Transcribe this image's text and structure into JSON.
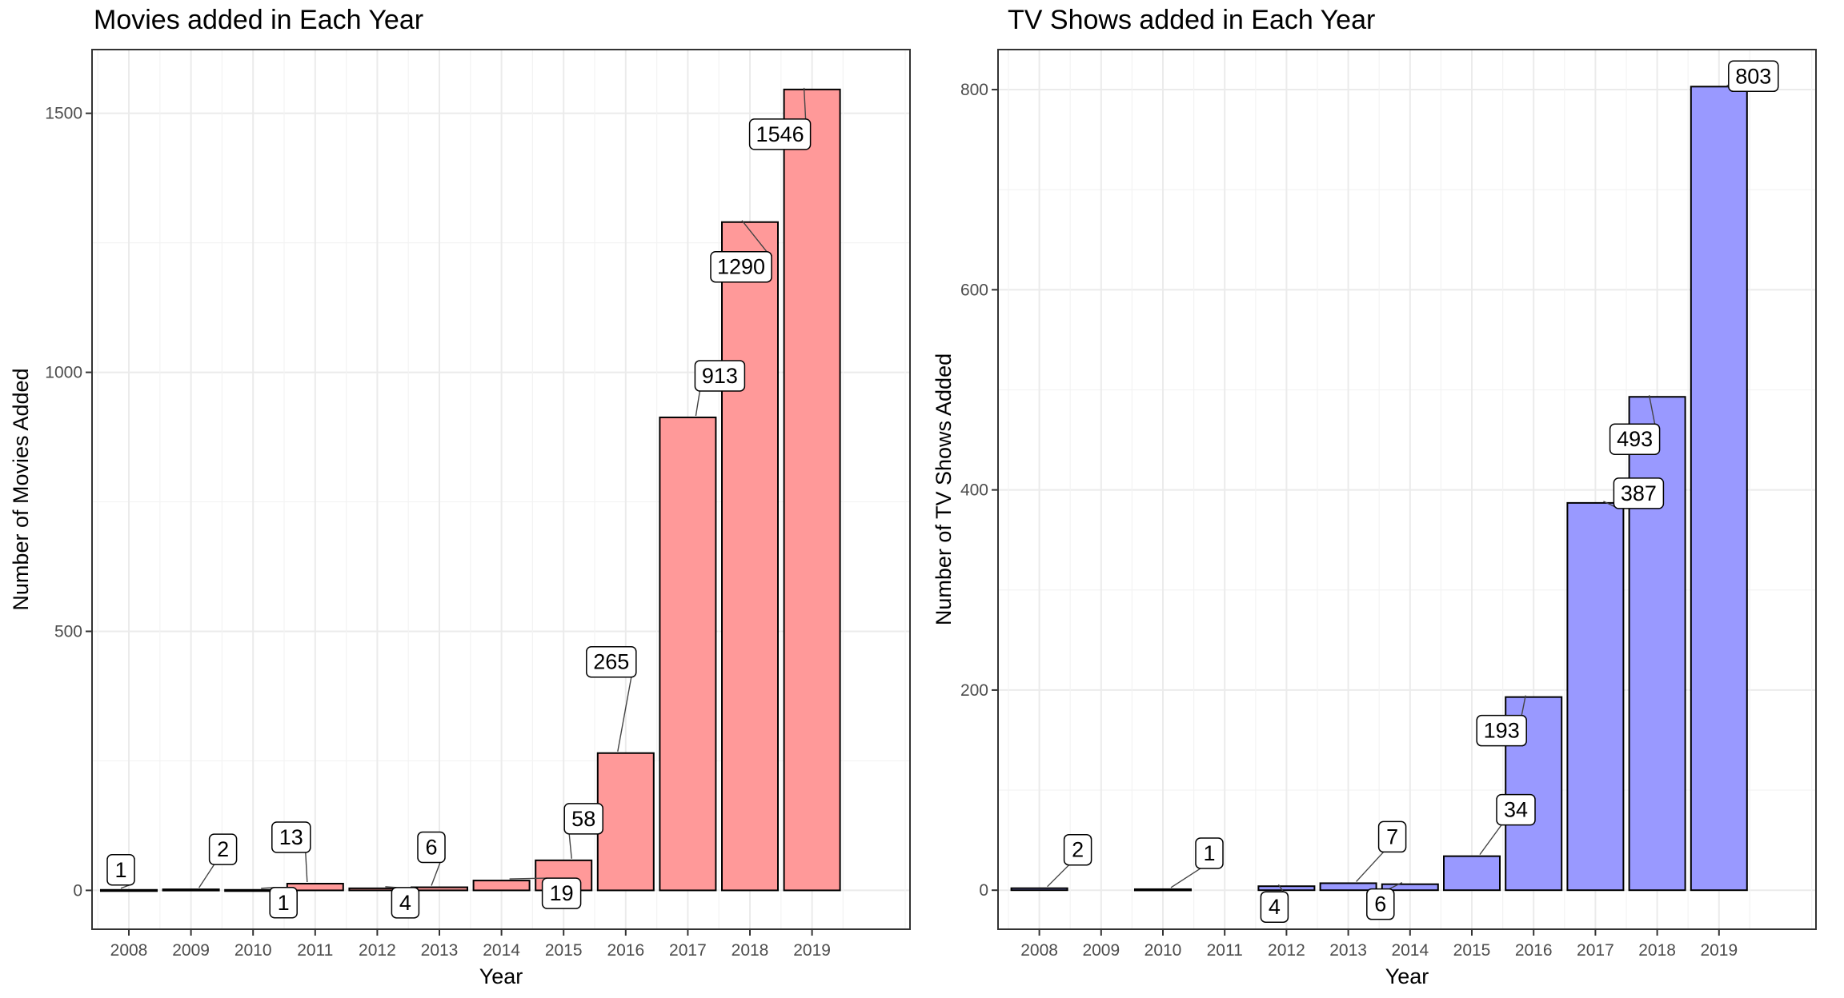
{
  "chart_data": [
    {
      "type": "bar",
      "title": "Movies added in Each Year",
      "xlabel": "Year",
      "ylabel": "Number of Movies Added",
      "categories": [
        "2008",
        "2009",
        "2010",
        "2011",
        "2012",
        "2013",
        "2014",
        "2015",
        "2016",
        "2017",
        "2018",
        "2019"
      ],
      "values": [
        1,
        2,
        1,
        13,
        4,
        6,
        19,
        58,
        265,
        913,
        1290,
        1546
      ],
      "labels": [
        "1",
        "2",
        "1",
        "13",
        "4",
        "6",
        "19",
        "58",
        "265",
        "913",
        "1290",
        "1546"
      ],
      "yticks": [
        0,
        500,
        1000,
        1500
      ],
      "ylim": [
        -75,
        1623
      ],
      "grid": true,
      "bar_color": "#ff9999",
      "bar_outline": "#000000"
    },
    {
      "type": "bar",
      "title": "TV Shows added in Each Year",
      "xlabel": "Year",
      "ylabel": "Number of TV Shows Added",
      "categories": [
        "2008",
        "2009",
        "2010",
        "2011",
        "2012",
        "2013",
        "2014",
        "2015",
        "2016",
        "2017",
        "2018",
        "2019"
      ],
      "values": [
        2,
        0,
        1,
        0,
        4,
        7,
        6,
        34,
        193,
        387,
        493,
        803
      ],
      "labels": [
        "2",
        "",
        "1",
        "",
        "4",
        "7",
        "6",
        "34",
        "193",
        "387",
        "493",
        "803"
      ],
      "yticks": [
        0,
        200,
        400,
        600,
        800
      ],
      "ylim": [
        -39,
        840
      ],
      "grid": true,
      "bar_color": "#9999ff",
      "bar_outline": "#000000"
    }
  ]
}
